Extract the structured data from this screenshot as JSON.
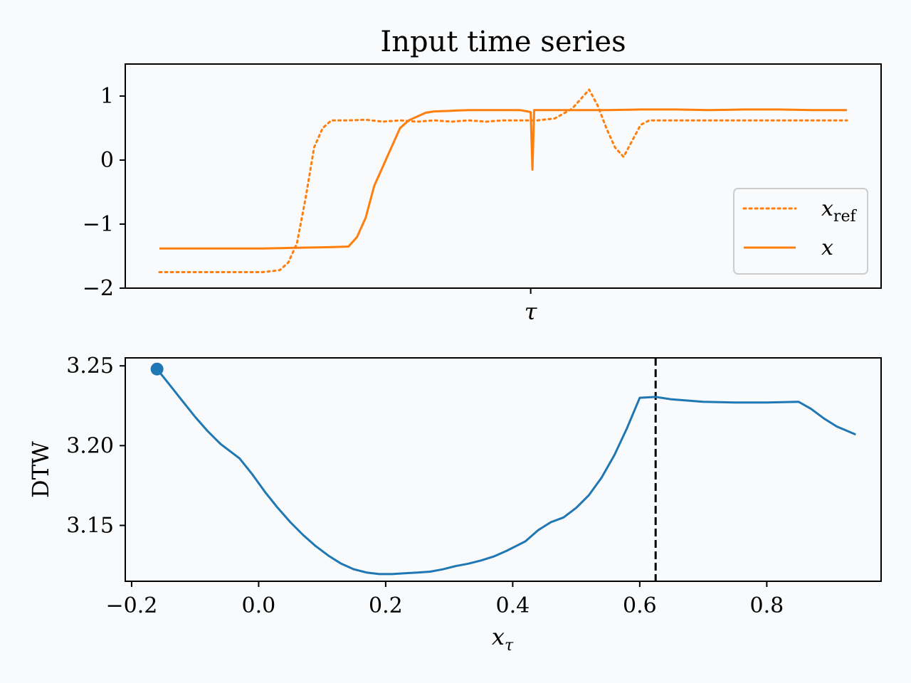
{
  "chart_data": [
    {
      "type": "line",
      "title": "Input time series",
      "xlabel": "τ",
      "ylabel": "",
      "ylim": [
        -2,
        1.5
      ],
      "yticks": [
        "1",
        "0",
        "−1",
        "−2"
      ],
      "grid": false,
      "legend_position": "lower right",
      "series": [
        {
          "name": "x_ref",
          "legend_main": "x",
          "legend_sub": "ref",
          "style": "dotted",
          "color": "#ff7f0e",
          "x": [
            0,
            20,
            40,
            60,
            70,
            75,
            80,
            85,
            90,
            95,
            100,
            110,
            120,
            130,
            140,
            150,
            160,
            170,
            180,
            190,
            200,
            210,
            220,
            230,
            240,
            250,
            255,
            260,
            265,
            270,
            275,
            280,
            285,
            290,
            300,
            320,
            340,
            360,
            380,
            400
          ],
          "y": [
            -1.75,
            -1.75,
            -1.75,
            -1.75,
            -1.72,
            -1.6,
            -1.3,
            -0.6,
            0.2,
            0.5,
            0.62,
            0.62,
            0.63,
            0.6,
            0.62,
            0.6,
            0.62,
            0.6,
            0.62,
            0.6,
            0.62,
            0.62,
            0.62,
            0.65,
            0.8,
            1.1,
            0.85,
            0.5,
            0.2,
            0.05,
            0.3,
            0.55,
            0.62,
            0.62,
            0.62,
            0.62,
            0.62,
            0.62,
            0.62,
            0.62
          ]
        },
        {
          "name": "x",
          "legend_main": "x",
          "legend_sub": "",
          "style": "solid",
          "color": "#ff7f0e",
          "x": [
            0,
            20,
            40,
            60,
            80,
            100,
            110,
            115,
            120,
            125,
            130,
            135,
            140,
            145,
            150,
            155,
            160,
            170,
            180,
            190,
            200,
            210,
            216,
            217,
            218,
            220,
            230,
            240,
            260,
            280,
            300,
            320,
            340,
            360,
            380,
            400
          ],
          "y": [
            -1.38,
            -1.38,
            -1.38,
            -1.38,
            -1.37,
            -1.36,
            -1.35,
            -1.2,
            -0.9,
            -0.4,
            -0.1,
            0.2,
            0.5,
            0.62,
            0.68,
            0.74,
            0.76,
            0.77,
            0.78,
            0.78,
            0.78,
            0.78,
            0.75,
            -0.15,
            0.78,
            0.78,
            0.78,
            0.78,
            0.78,
            0.79,
            0.79,
            0.78,
            0.79,
            0.79,
            0.78,
            0.78
          ]
        }
      ],
      "marker": {
        "x": 216,
        "label": "τ"
      }
    },
    {
      "type": "line",
      "title": "",
      "xlabel": "x_τ",
      "ylabel": "DTW",
      "xlim": [
        -0.21,
        0.98
      ],
      "ylim": [
        3.115,
        3.255
      ],
      "xticks": [
        "−0.2",
        "0.0",
        "0.2",
        "0.4",
        "0.6",
        "0.8"
      ],
      "yticks": [
        "3.25",
        "3.20",
        "3.15"
      ],
      "grid": false,
      "series": [
        {
          "name": "",
          "color": "#1f77b4",
          "x": [
            -0.16,
            -0.14,
            -0.12,
            -0.1,
            -0.08,
            -0.06,
            -0.03,
            -0.01,
            0.01,
            0.03,
            0.05,
            0.07,
            0.09,
            0.11,
            0.13,
            0.15,
            0.17,
            0.19,
            0.21,
            0.23,
            0.25,
            0.27,
            0.29,
            0.31,
            0.33,
            0.35,
            0.37,
            0.39,
            0.42,
            0.44,
            0.46,
            0.48,
            0.5,
            0.52,
            0.54,
            0.56,
            0.58,
            0.6,
            0.625,
            0.65,
            0.7,
            0.75,
            0.8,
            0.85,
            0.87,
            0.89,
            0.91,
            0.94
          ],
          "y": [
            3.248,
            3.238,
            3.228,
            3.218,
            3.209,
            3.201,
            3.192,
            3.182,
            3.171,
            3.161,
            3.152,
            3.144,
            3.137,
            3.131,
            3.126,
            3.1225,
            3.1205,
            3.1195,
            3.1195,
            3.12,
            3.1205,
            3.121,
            3.1225,
            3.1245,
            3.126,
            3.128,
            3.1305,
            3.134,
            3.14,
            3.147,
            3.152,
            3.155,
            3.161,
            3.169,
            3.18,
            3.194,
            3.211,
            3.23,
            3.2305,
            3.229,
            3.2275,
            3.227,
            3.227,
            3.2275,
            3.223,
            3.217,
            3.212,
            3.207
          ]
        }
      ],
      "start_point": {
        "x": -0.16,
        "y": 3.248
      },
      "vline": {
        "x": 0.625,
        "style": "dashed",
        "color": "#000000"
      }
    }
  ]
}
